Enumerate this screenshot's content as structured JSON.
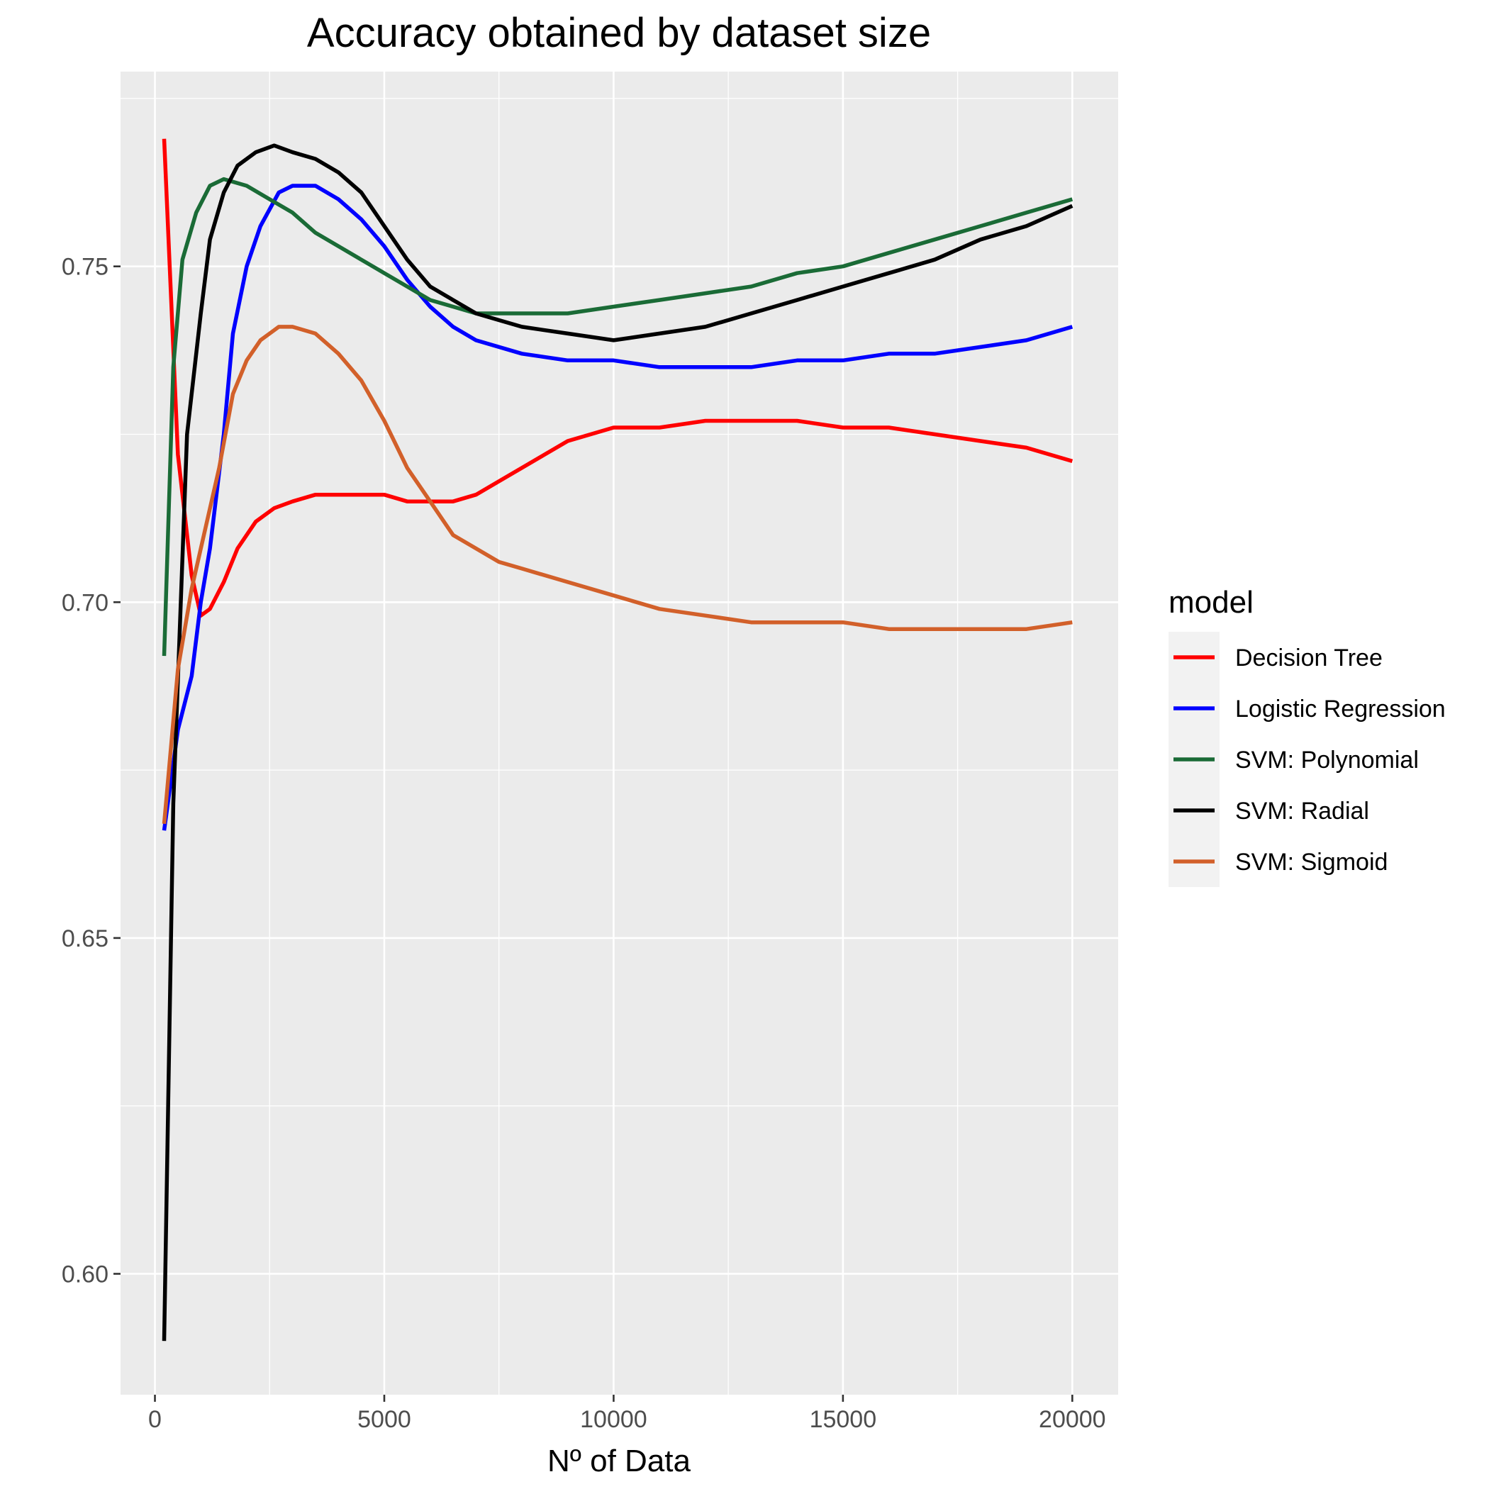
{
  "chart_data": {
    "type": "line",
    "title": "Accuracy obtained by dataset size",
    "xlabel": "Nº of Data",
    "ylabel": "",
    "xlim": [
      -750,
      21000
    ],
    "ylim": [
      0.582,
      0.779
    ],
    "x_ticks": [
      0,
      5000,
      10000,
      15000,
      20000
    ],
    "x_tick_labels": [
      "0",
      "5000",
      "10000",
      "15000",
      "20000"
    ],
    "y_ticks": [
      0.6,
      0.65,
      0.7,
      0.75
    ],
    "y_tick_labels": [
      "0.60",
      "0.65",
      "0.70",
      "0.75"
    ],
    "grid": true,
    "legend": {
      "title": "model",
      "position": "right"
    },
    "series": [
      {
        "name": "Decision Tree",
        "color": "#ff0000",
        "points": [
          [
            200,
            0.769
          ],
          [
            500,
            0.722
          ],
          [
            800,
            0.704
          ],
          [
            1000,
            0.698
          ],
          [
            1200,
            0.699
          ],
          [
            1500,
            0.703
          ],
          [
            1800,
            0.708
          ],
          [
            2200,
            0.712
          ],
          [
            2600,
            0.714
          ],
          [
            3000,
            0.715
          ],
          [
            3500,
            0.716
          ],
          [
            4000,
            0.716
          ],
          [
            4500,
            0.716
          ],
          [
            5000,
            0.716
          ],
          [
            5500,
            0.715
          ],
          [
            6000,
            0.715
          ],
          [
            6500,
            0.715
          ],
          [
            7000,
            0.716
          ],
          [
            7500,
            0.718
          ],
          [
            8000,
            0.72
          ],
          [
            8500,
            0.722
          ],
          [
            9000,
            0.724
          ],
          [
            9500,
            0.725
          ],
          [
            10000,
            0.726
          ],
          [
            11000,
            0.726
          ],
          [
            12000,
            0.727
          ],
          [
            13000,
            0.727
          ],
          [
            14000,
            0.727
          ],
          [
            15000,
            0.726
          ],
          [
            16000,
            0.726
          ],
          [
            17000,
            0.725
          ],
          [
            18000,
            0.724
          ],
          [
            19000,
            0.723
          ],
          [
            20000,
            0.721
          ]
        ]
      },
      {
        "name": "Logistic Regression",
        "color": "#0000ff",
        "points": [
          [
            200,
            0.666
          ],
          [
            500,
            0.681
          ],
          [
            800,
            0.689
          ],
          [
            1000,
            0.7
          ],
          [
            1200,
            0.708
          ],
          [
            1500,
            0.725
          ],
          [
            1700,
            0.74
          ],
          [
            2000,
            0.75
          ],
          [
            2300,
            0.756
          ],
          [
            2700,
            0.761
          ],
          [
            3000,
            0.762
          ],
          [
            3500,
            0.762
          ],
          [
            4000,
            0.76
          ],
          [
            4500,
            0.757
          ],
          [
            5000,
            0.753
          ],
          [
            5500,
            0.748
          ],
          [
            6000,
            0.744
          ],
          [
            6500,
            0.741
          ],
          [
            7000,
            0.739
          ],
          [
            8000,
            0.737
          ],
          [
            9000,
            0.736
          ],
          [
            10000,
            0.736
          ],
          [
            11000,
            0.735
          ],
          [
            12000,
            0.735
          ],
          [
            13000,
            0.735
          ],
          [
            14000,
            0.736
          ],
          [
            15000,
            0.736
          ],
          [
            16000,
            0.737
          ],
          [
            17000,
            0.737
          ],
          [
            18000,
            0.738
          ],
          [
            19000,
            0.739
          ],
          [
            20000,
            0.741
          ]
        ]
      },
      {
        "name": "SVM: Polynomial",
        "color": "#1a6b36",
        "points": [
          [
            200,
            0.692
          ],
          [
            400,
            0.735
          ],
          [
            600,
            0.751
          ],
          [
            900,
            0.758
          ],
          [
            1200,
            0.762
          ],
          [
            1500,
            0.763
          ],
          [
            2000,
            0.762
          ],
          [
            2500,
            0.76
          ],
          [
            3000,
            0.758
          ],
          [
            3500,
            0.755
          ],
          [
            4000,
            0.753
          ],
          [
            4500,
            0.751
          ],
          [
            5000,
            0.749
          ],
          [
            5500,
            0.747
          ],
          [
            6000,
            0.745
          ],
          [
            6500,
            0.744
          ],
          [
            7000,
            0.743
          ],
          [
            8000,
            0.743
          ],
          [
            9000,
            0.743
          ],
          [
            10000,
            0.744
          ],
          [
            11000,
            0.745
          ],
          [
            12000,
            0.746
          ],
          [
            13000,
            0.747
          ],
          [
            14000,
            0.749
          ],
          [
            15000,
            0.75
          ],
          [
            16000,
            0.752
          ],
          [
            17000,
            0.754
          ],
          [
            18000,
            0.756
          ],
          [
            19000,
            0.758
          ],
          [
            20000,
            0.76
          ]
        ]
      },
      {
        "name": "SVM: Radial",
        "color": "#000000",
        "points": [
          [
            200,
            0.59
          ],
          [
            400,
            0.67
          ],
          [
            700,
            0.725
          ],
          [
            1000,
            0.743
          ],
          [
            1200,
            0.754
          ],
          [
            1500,
            0.761
          ],
          [
            1800,
            0.765
          ],
          [
            2200,
            0.767
          ],
          [
            2600,
            0.768
          ],
          [
            3000,
            0.767
          ],
          [
            3500,
            0.766
          ],
          [
            4000,
            0.764
          ],
          [
            4500,
            0.761
          ],
          [
            5000,
            0.756
          ],
          [
            5500,
            0.751
          ],
          [
            6000,
            0.747
          ],
          [
            6500,
            0.745
          ],
          [
            7000,
            0.743
          ],
          [
            7500,
            0.742
          ],
          [
            8000,
            0.741
          ],
          [
            9000,
            0.74
          ],
          [
            10000,
            0.739
          ],
          [
            11000,
            0.74
          ],
          [
            12000,
            0.741
          ],
          [
            13000,
            0.743
          ],
          [
            14000,
            0.745
          ],
          [
            15000,
            0.747
          ],
          [
            16000,
            0.749
          ],
          [
            17000,
            0.751
          ],
          [
            18000,
            0.754
          ],
          [
            19000,
            0.756
          ],
          [
            20000,
            0.759
          ]
        ]
      },
      {
        "name": "SVM: Sigmoid",
        "color": "#d2602a",
        "points": [
          [
            200,
            0.667
          ],
          [
            500,
            0.69
          ],
          [
            800,
            0.702
          ],
          [
            1100,
            0.711
          ],
          [
            1400,
            0.72
          ],
          [
            1700,
            0.731
          ],
          [
            2000,
            0.736
          ],
          [
            2300,
            0.739
          ],
          [
            2700,
            0.741
          ],
          [
            3000,
            0.741
          ],
          [
            3500,
            0.74
          ],
          [
            4000,
            0.737
          ],
          [
            4500,
            0.733
          ],
          [
            5000,
            0.727
          ],
          [
            5500,
            0.72
          ],
          [
            6000,
            0.715
          ],
          [
            6500,
            0.71
          ],
          [
            7000,
            0.708
          ],
          [
            7500,
            0.706
          ],
          [
            8000,
            0.705
          ],
          [
            9000,
            0.703
          ],
          [
            10000,
            0.701
          ],
          [
            11000,
            0.699
          ],
          [
            12000,
            0.698
          ],
          [
            13000,
            0.697
          ],
          [
            14000,
            0.697
          ],
          [
            15000,
            0.697
          ],
          [
            16000,
            0.696
          ],
          [
            17000,
            0.696
          ],
          [
            18000,
            0.696
          ],
          [
            19000,
            0.696
          ],
          [
            20000,
            0.697
          ]
        ]
      }
    ]
  }
}
